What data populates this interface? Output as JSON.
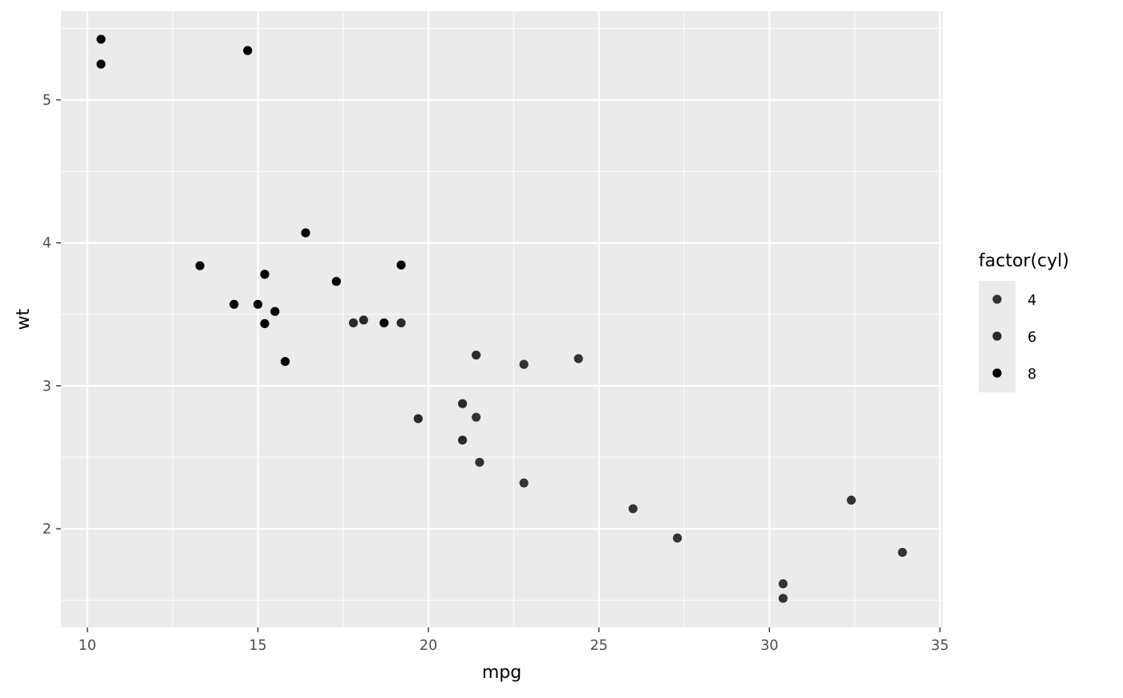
{
  "chart_data": {
    "type": "scatter",
    "title": "",
    "xlabel": "mpg",
    "ylabel": "wt",
    "xlim": [
      9.225,
      35.075
    ],
    "ylim": [
      1.31,
      5.62
    ],
    "x_ticks": [
      10,
      15,
      20,
      25,
      30,
      35
    ],
    "x_minor": [
      12.5,
      17.5,
      22.5,
      27.5,
      32.5
    ],
    "y_ticks": [
      2,
      3,
      4,
      5
    ],
    "y_minor": [
      1.5,
      2.5,
      3.5,
      4.5,
      5.5
    ],
    "x_tick_labels": [
      "10",
      "15",
      "20",
      "25",
      "30",
      "35"
    ],
    "y_tick_labels": [
      "2",
      "3",
      "4",
      "5"
    ],
    "grid": true,
    "panel_background": "#ebebeb",
    "grid_color": "#ffffff",
    "legend": {
      "title": "factor(cyl)",
      "position": "right",
      "entries": [
        {
          "label": "4",
          "color": "#333333"
        },
        {
          "label": "6",
          "color": "#2a2a2a"
        },
        {
          "label": "8",
          "color": "#000000"
        }
      ]
    },
    "series": [
      {
        "name": "4",
        "color": "#333333",
        "points": [
          [
            22.8,
            2.32
          ],
          [
            24.4,
            3.19
          ],
          [
            22.8,
            3.15
          ],
          [
            32.4,
            2.2
          ],
          [
            30.4,
            1.615
          ],
          [
            33.9,
            1.835
          ],
          [
            21.5,
            2.465
          ],
          [
            27.3,
            1.935
          ],
          [
            26.0,
            2.14
          ],
          [
            30.4,
            1.513
          ],
          [
            21.4,
            2.78
          ]
        ]
      },
      {
        "name": "6",
        "color": "#2a2a2a",
        "points": [
          [
            21.0,
            2.62
          ],
          [
            21.0,
            2.875
          ],
          [
            21.4,
            3.215
          ],
          [
            18.1,
            3.46
          ],
          [
            19.2,
            3.44
          ],
          [
            17.8,
            3.44
          ],
          [
            19.7,
            2.77
          ]
        ]
      },
      {
        "name": "8",
        "color": "#000000",
        "points": [
          [
            18.7,
            3.44
          ],
          [
            14.3,
            3.57
          ],
          [
            16.4,
            4.07
          ],
          [
            17.3,
            3.73
          ],
          [
            15.2,
            3.78
          ],
          [
            10.4,
            5.25
          ],
          [
            10.4,
            5.424
          ],
          [
            14.7,
            5.345
          ],
          [
            15.5,
            3.52
          ],
          [
            15.2,
            3.435
          ],
          [
            13.3,
            3.84
          ],
          [
            19.2,
            3.845
          ],
          [
            15.8,
            3.17
          ],
          [
            15.0,
            3.57
          ]
        ]
      }
    ]
  }
}
